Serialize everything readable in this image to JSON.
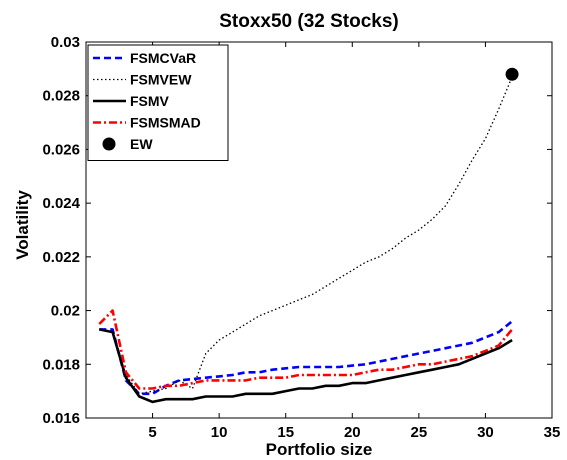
{
  "chart_data": {
    "type": "line",
    "title": "Stoxx50 (32 Stocks)",
    "xlabel": "Portfolio size",
    "ylabel": "Volatility",
    "xlim": [
      0,
      35
    ],
    "ylim": [
      0.016,
      0.03
    ],
    "xticks": [
      "5",
      "10",
      "15",
      "20",
      "25",
      "30",
      "35"
    ],
    "yticks": [
      "0.016",
      "0.018",
      "0.02",
      "0.022",
      "0.024",
      "0.026",
      "0.028",
      "0.03"
    ],
    "grid": false,
    "legend_position": "top-left",
    "x": [
      1,
      2,
      3,
      4,
      5,
      6,
      7,
      8,
      9,
      10,
      11,
      12,
      13,
      14,
      15,
      16,
      17,
      18,
      19,
      20,
      21,
      22,
      23,
      24,
      25,
      26,
      27,
      28,
      29,
      30,
      31,
      32
    ],
    "series": [
      {
        "name": "FSMCVaR",
        "color": "#0000ff",
        "style": "dashed",
        "values": [
          0.0193,
          0.0193,
          0.0174,
          0.0169,
          0.0169,
          0.0172,
          0.0174,
          0.01745,
          0.0175,
          0.01755,
          0.0176,
          0.0177,
          0.0177,
          0.0178,
          0.01785,
          0.0179,
          0.0179,
          0.0179,
          0.0179,
          0.01795,
          0.018,
          0.0181,
          0.0182,
          0.0183,
          0.0184,
          0.0185,
          0.0186,
          0.0187,
          0.0188,
          0.019,
          0.0192,
          0.0196
        ]
      },
      {
        "name": "FSMVEW",
        "color": "#000000",
        "style": "dotted",
        "values": [
          0.0193,
          0.0192,
          0.0176,
          0.0169,
          0.017,
          0.0171,
          0.0174,
          0.0171,
          0.0184,
          0.0189,
          0.0192,
          0.0195,
          0.0198,
          0.02,
          0.0202,
          0.0204,
          0.0206,
          0.0209,
          0.0212,
          0.0215,
          0.0218,
          0.022,
          0.0223,
          0.0227,
          0.023,
          0.0234,
          0.0239,
          0.0247,
          0.0256,
          0.0264,
          0.0275,
          0.0287
        ]
      },
      {
        "name": "FSMV",
        "color": "#000000",
        "style": "solid",
        "values": [
          0.0193,
          0.0192,
          0.0175,
          0.0168,
          0.0166,
          0.0167,
          0.0167,
          0.0167,
          0.0168,
          0.0168,
          0.0168,
          0.0169,
          0.0169,
          0.0169,
          0.017,
          0.0171,
          0.0171,
          0.0172,
          0.0172,
          0.0173,
          0.0173,
          0.0174,
          0.0175,
          0.0176,
          0.0177,
          0.0178,
          0.0179,
          0.018,
          0.0182,
          0.0184,
          0.0186,
          0.0189
        ]
      },
      {
        "name": "FSMSMAD",
        "color": "#ff0000",
        "style": "dashdot",
        "values": [
          0.0195,
          0.02,
          0.0177,
          0.0171,
          0.0171,
          0.0172,
          0.0172,
          0.0173,
          0.0174,
          0.0174,
          0.0174,
          0.0174,
          0.0175,
          0.0175,
          0.0175,
          0.0176,
          0.0176,
          0.0176,
          0.0176,
          0.0176,
          0.0177,
          0.0178,
          0.0178,
          0.0179,
          0.018,
          0.018,
          0.0181,
          0.0182,
          0.0183,
          0.0185,
          0.0187,
          0.0193
        ]
      }
    ],
    "points": [
      {
        "name": "EW",
        "x": 32,
        "y": 0.0288,
        "color": "#000000",
        "marker": "filled-circle"
      }
    ]
  }
}
